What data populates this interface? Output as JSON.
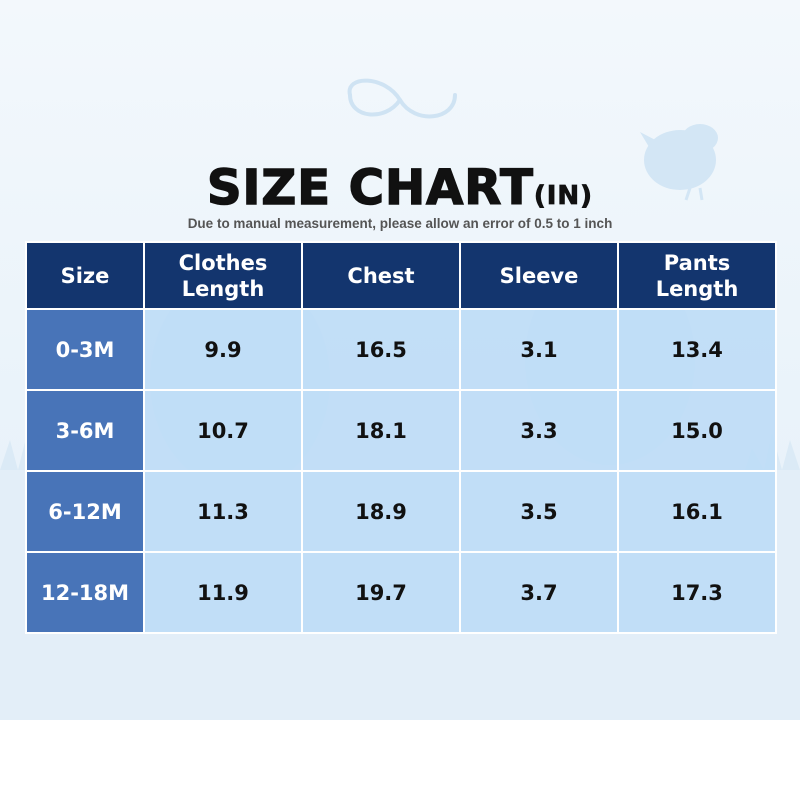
{
  "title": {
    "main": "SIZE CHART",
    "unit": "(IN)"
  },
  "subtitle": "Due to manual measurement, please allow an error of 0.5 to 1 inch",
  "table": {
    "headers": [
      {
        "line1": "Size",
        "line2": ""
      },
      {
        "line1": "Clothes",
        "line2": "Length"
      },
      {
        "line1": "Chest",
        "line2": ""
      },
      {
        "line1": "Sleeve",
        "line2": ""
      },
      {
        "line1": "Pants",
        "line2": "Length"
      }
    ],
    "rows": [
      [
        "0-3M",
        "9.9",
        "16.5",
        "3.1",
        "13.4"
      ],
      [
        "3-6M",
        "10.7",
        "18.1",
        "3.3",
        "15.0"
      ],
      [
        "6-12M",
        "11.3",
        "18.9",
        "3.5",
        "16.1"
      ],
      [
        "12-18M",
        "11.9",
        "19.7",
        "3.7",
        "17.3"
      ]
    ]
  },
  "colors": {
    "header_bg": "#13356e",
    "size_column_bg": "#4874b8",
    "cell_bg": "#bedcf6",
    "background": "#eaf3fa"
  },
  "decorations": [
    "infinity-swirl",
    "bird-icon",
    "grass-silhouette",
    "egg-shapes"
  ]
}
